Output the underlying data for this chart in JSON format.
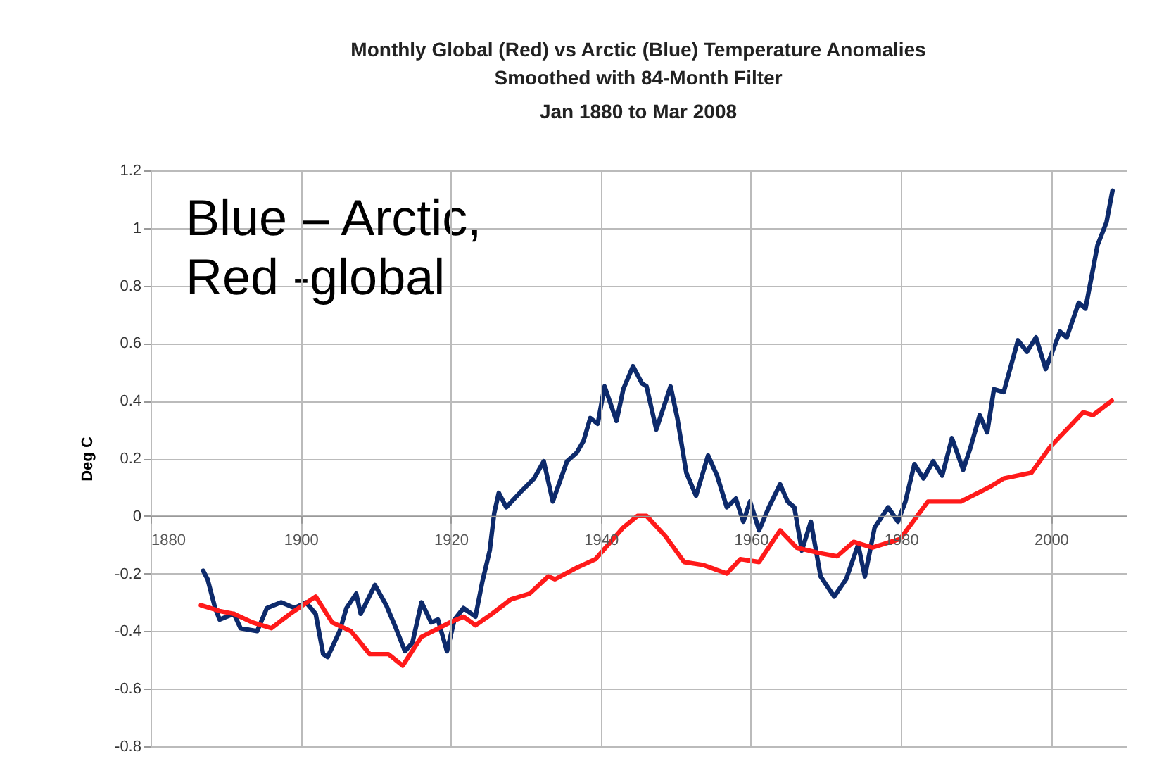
{
  "chart_data": {
    "type": "line",
    "title": "Monthly Global (Red) vs Arctic (Blue) Temperature Anomalies",
    "subtitle": "Smoothed with 84-Month Filter\nJan 1880 to Mar 2008",
    "ylabel": "Deg C",
    "annotations": [
      "Blue – Arctic,",
      "Red -global"
    ],
    "xlim": [
      1880,
      2010
    ],
    "xticks": [
      1880,
      1900,
      1920,
      1940,
      1960,
      1980,
      2000
    ],
    "ylim": [
      -0.8,
      1.2
    ],
    "yticks": [
      -0.8,
      -0.6,
      -0.4,
      -0.2,
      0,
      0.2,
      0.4,
      0.6,
      0.8,
      1,
      1.2
    ],
    "grid": true,
    "line_style": "solid",
    "series": [
      {
        "color": "#0d2a6b",
        "x": [
          1887.0,
          1887.6,
          1888.6,
          1889.2,
          1891.1,
          1892.0,
          1894.2,
          1895.5,
          1897.4,
          1899.2,
          1900.7,
          1902.0,
          1903.0,
          1903.6,
          1905.2,
          1906.1,
          1907.4,
          1908.0,
          1909.9,
          1911.4,
          1912.7,
          1913.9,
          1914.9,
          1916.1,
          1917.4,
          1918.3,
          1919.5,
          1920.5,
          1921.7,
          1923.3,
          1924.2,
          1925.2,
          1925.8,
          1926.4,
          1927.4,
          1929.2,
          1931.1,
          1932.4,
          1933.6,
          1935.5,
          1936.8,
          1937.7,
          1938.6,
          1939.6,
          1940.5,
          1942.1,
          1943.0,
          1944.3,
          1945.5,
          1946.1,
          1947.4,
          1949.3,
          1950.2,
          1951.4,
          1952.7,
          1954.3,
          1955.5,
          1956.8,
          1958.0,
          1959.0,
          1959.9,
          1961.1,
          1962.4,
          1963.9,
          1964.9,
          1965.8,
          1966.8,
          1968.0,
          1969.3,
          1971.1,
          1972.7,
          1974.3,
          1975.2,
          1976.5,
          1978.3,
          1979.6,
          1980.6,
          1981.8,
          1983.0,
          1984.3,
          1985.5,
          1986.8,
          1988.3,
          1989.3,
          1990.5,
          1991.5,
          1992.4,
          1993.7,
          1995.6,
          1996.8,
          1998.0,
          1999.3,
          2001.2,
          2002.1,
          2003.7,
          2004.6,
          2006.2,
          2007.4,
          2008.2
        ],
        "values": [
          -0.19,
          -0.22,
          -0.32,
          -0.36,
          -0.34,
          -0.39,
          -0.4,
          -0.32,
          -0.3,
          -0.32,
          -0.3,
          -0.34,
          -0.48,
          -0.49,
          -0.4,
          -0.32,
          -0.27,
          -0.34,
          -0.24,
          -0.31,
          -0.39,
          -0.47,
          -0.44,
          -0.3,
          -0.37,
          -0.36,
          -0.47,
          -0.36,
          -0.32,
          -0.35,
          -0.23,
          -0.12,
          0.01,
          0.08,
          0.03,
          0.08,
          0.13,
          0.19,
          0.05,
          0.19,
          0.22,
          0.26,
          0.34,
          0.32,
          0.45,
          0.33,
          0.44,
          0.52,
          0.46,
          0.45,
          0.3,
          0.45,
          0.34,
          0.15,
          0.07,
          0.21,
          0.14,
          0.03,
          0.06,
          -0.02,
          0.05,
          -0.05,
          0.03,
          0.11,
          0.05,
          0.03,
          -0.12,
          -0.02,
          -0.21,
          -0.28,
          -0.22,
          -0.1,
          -0.21,
          -0.04,
          0.03,
          -0.02,
          0.05,
          0.18,
          0.13,
          0.19,
          0.14,
          0.27,
          0.16,
          0.24,
          0.35,
          0.29,
          0.44,
          0.43,
          0.61,
          0.57,
          0.62,
          0.51,
          0.64,
          0.62,
          0.74,
          0.72,
          0.94,
          1.02,
          1.13
        ]
      },
      {
        "color": "#ff1a1a",
        "x": [
          1886.7,
          1889.2,
          1891.1,
          1893.6,
          1896.1,
          1898.6,
          1902.0,
          1904.2,
          1906.7,
          1909.2,
          1911.7,
          1913.6,
          1916.1,
          1919.9,
          1921.7,
          1923.3,
          1925.5,
          1928.0,
          1930.5,
          1933.0,
          1933.9,
          1936.8,
          1939.3,
          1943.0,
          1944.9,
          1946.1,
          1948.6,
          1951.1,
          1953.6,
          1956.8,
          1958.6,
          1961.1,
          1963.9,
          1966.1,
          1969.3,
          1971.5,
          1973.7,
          1976.2,
          1979.9,
          1983.6,
          1988.0,
          1991.8,
          1993.7,
          1997.4,
          1999.9,
          2004.3,
          2005.6,
          2008.1
        ],
        "values": [
          -0.31,
          -0.33,
          -0.34,
          -0.37,
          -0.39,
          -0.34,
          -0.28,
          -0.37,
          -0.4,
          -0.48,
          -0.48,
          -0.52,
          -0.42,
          -0.37,
          -0.35,
          -0.38,
          -0.34,
          -0.29,
          -0.27,
          -0.21,
          -0.22,
          -0.18,
          -0.15,
          -0.04,
          0.0,
          0.0,
          -0.07,
          -0.16,
          -0.17,
          -0.2,
          -0.15,
          -0.16,
          -0.05,
          -0.11,
          -0.13,
          -0.14,
          -0.09,
          -0.11,
          -0.08,
          0.05,
          0.05,
          0.1,
          0.13,
          0.15,
          0.24,
          0.36,
          0.35,
          0.4
        ]
      }
    ]
  }
}
